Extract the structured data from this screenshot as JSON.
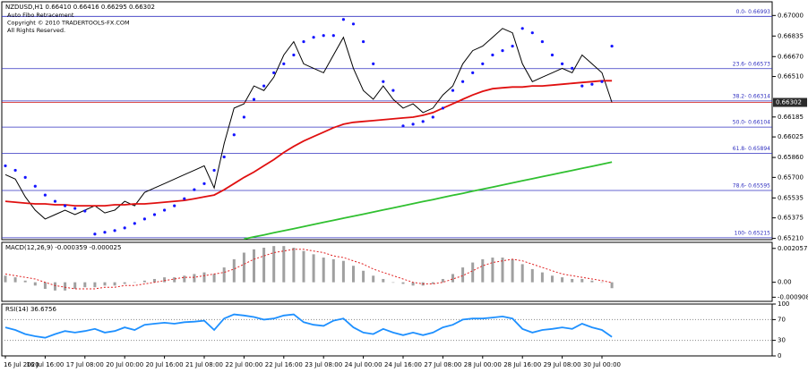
{
  "chart_data": [
    {
      "type": "price",
      "title": "NZDUSD,H1  0.66410 0.66416 0.66295 0.66302",
      "annotations": [
        "Auto Fibo Retracement",
        "Copyright © 2010 TRADERTOOLS-FX.COM",
        "All Rights Reserved."
      ],
      "categories": [
        "16 Jul 2020",
        null,
        null,
        null,
        "16 Jul 16:00",
        null,
        null,
        null,
        "17 Jul 08:00",
        null,
        null,
        null,
        "20 Jul 00:00",
        null,
        null,
        null,
        "20 Jul 16:00",
        null,
        null,
        null,
        "21 Jul 08:00",
        null,
        null,
        null,
        "22 Jul 00:00",
        null,
        null,
        null,
        "22 Jul 16:00",
        null,
        null,
        null,
        "23 Jul 08:00",
        null,
        null,
        null,
        "24 Jul 00:00",
        null,
        null,
        null,
        "24 Jul 16:00",
        null,
        null,
        null,
        "27 Jul 08:00",
        null,
        null,
        null,
        "28 Jul 00:00",
        null,
        null,
        null,
        "28 Jul 16:00",
        null,
        null,
        null,
        "29 Jul 08:00",
        null,
        null,
        null,
        "30 Jul 00:00",
        null
      ],
      "ylim": [
        0.652,
        0.6711
      ],
      "yticks": [
        {
          "value": 0.67,
          "label": "0.67000"
        },
        {
          "value": 0.66835,
          "label": "0.66835"
        },
        {
          "value": 0.6667,
          "label": "0.66670"
        },
        {
          "value": 0.6651,
          "label": "0.66510"
        },
        {
          "value": 0.66185,
          "label": "0.66185"
        },
        {
          "value": 0.66025,
          "label": "0.66025"
        },
        {
          "value": 0.6586,
          "label": "0.65860"
        },
        {
          "value": 0.657,
          "label": "0.65700"
        },
        {
          "value": 0.65535,
          "label": "0.65535"
        },
        {
          "value": 0.65375,
          "label": "0.65375"
        },
        {
          "value": 0.6521,
          "label": "0.65210"
        }
      ],
      "grid": false,
      "fibo_color": "#3030c0",
      "fibo_levels": [
        {
          "value": 0.66993,
          "label": "0.0- 0.66993"
        },
        {
          "value": 0.66573,
          "label": "23.6- 0.66573"
        },
        {
          "value": 0.66314,
          "label": "38.2- 0.66314"
        },
        {
          "value": 0.66104,
          "label": "50.0- 0.66104"
        },
        {
          "value": 0.65894,
          "label": "61.8- 0.65894"
        },
        {
          "value": 0.65595,
          "label": "78.6- 0.65595"
        },
        {
          "value": 0.65215,
          "label": "100- 0.65215"
        }
      ],
      "current_price": 0.66302,
      "current_price_color": "#d01010",
      "series": [
        {
          "style": "line",
          "color": "#000000",
          "values": [
            0.65722,
            0.65686,
            0.65544,
            0.65437,
            0.65366,
            0.65401,
            0.65437,
            0.65401,
            0.65437,
            0.65472,
            0.65415,
            0.65437,
            0.65508,
            0.65472,
            0.65579,
            0.65615,
            0.6565,
            0.65686,
            0.65722,
            0.65757,
            0.65793,
            0.65615,
            0.65971,
            0.66256,
            0.66291,
            0.66434,
            0.66398,
            0.66505,
            0.66683,
            0.6679,
            0.66612,
            0.66576,
            0.6654,
            0.66683,
            0.66825,
            0.66576,
            0.66398,
            0.66327,
            0.66434,
            0.66327,
            0.66256,
            0.66291,
            0.6622,
            0.66256,
            0.66362,
            0.66434,
            0.66612,
            0.66718,
            0.66754,
            0.66825,
            0.66896,
            0.66861,
            0.66612,
            0.66469,
            0.66505,
            0.6654,
            0.66576,
            0.6654,
            0.66683,
            0.66612,
            0.6654,
            0.66302
          ]
        },
        {
          "style": "line",
          "color": "#e01010",
          "values": [
            0.65508,
            0.65501,
            0.65494,
            0.65487,
            0.65487,
            0.6548,
            0.6548,
            0.65472,
            0.65472,
            0.65472,
            0.65472,
            0.6548,
            0.6548,
            0.65487,
            0.65487,
            0.65494,
            0.65501,
            0.65508,
            0.65515,
            0.65529,
            0.65544,
            0.65558,
            0.65601,
            0.6565,
            0.657,
            0.65743,
            0.65793,
            0.65843,
            0.659,
            0.65949,
            0.65992,
            0.66028,
            0.66063,
            0.66099,
            0.66127,
            0.66142,
            0.66149,
            0.66156,
            0.66163,
            0.6617,
            0.66177,
            0.66184,
            0.66199,
            0.6622,
            0.66256,
            0.66291,
            0.66327,
            0.66362,
            0.66391,
            0.66412,
            0.66419,
            0.66426,
            0.66426,
            0.66434,
            0.66434,
            0.66441,
            0.66448,
            0.66455,
            0.66462,
            0.66469,
            0.66476,
            0.66476
          ]
        },
        {
          "style": "line",
          "color": "#30c030",
          "values": [
            null,
            null,
            null,
            null,
            null,
            null,
            null,
            null,
            null,
            null,
            null,
            null,
            null,
            null,
            null,
            null,
            null,
            null,
            null,
            null,
            null,
            null,
            null,
            null,
            0.65205,
            0.65222,
            0.65238,
            0.65255,
            0.65272,
            0.65288,
            0.65305,
            0.65322,
            0.65339,
            0.65355,
            0.65372,
            0.65389,
            0.65405,
            0.65422,
            0.65439,
            0.65455,
            0.65472,
            0.65489,
            0.65506,
            0.65522,
            0.65539,
            0.65556,
            0.65572,
            0.65589,
            0.65606,
            0.65622,
            0.65639,
            0.65656,
            0.65673,
            0.65689,
            0.65706,
            0.65723,
            0.65739,
            0.65756,
            0.65773,
            0.65789,
            0.65806,
            0.65823
          ]
        },
        {
          "style": "dots",
          "color": "#1414ff",
          "values": [
            0.65793,
            0.65757,
            0.657,
            0.65629,
            0.65558,
            0.65508,
            0.65472,
            0.65451,
            0.6543,
            0.65245,
            0.65259,
            0.65273,
            0.65294,
            0.6533,
            0.65366,
            0.65401,
            0.65437,
            0.65472,
            0.65529,
            0.65601,
            0.6565,
            0.65757,
            0.65864,
            0.66042,
            0.66184,
            0.66327,
            0.66434,
            0.6654,
            0.66612,
            0.66683,
            0.6679,
            0.66825,
            0.66839,
            0.66839,
            0.66968,
            0.66932,
            0.6679,
            0.66612,
            0.66469,
            0.66398,
            0.66113,
            0.66127,
            0.66149,
            0.66184,
            0.66256,
            0.66398,
            0.66469,
            0.6654,
            0.66612,
            0.66683,
            0.66718,
            0.66754,
            0.66896,
            0.66861,
            0.6679,
            0.66683,
            0.66612,
            0.66576,
            0.66434,
            0.66448,
            0.66469,
            0.66754
          ]
        }
      ]
    },
    {
      "type": "macd",
      "title": "MACD(12,26,9) -0.000359 -0.000025",
      "ylim": [
        -0.00116,
        0.002426
      ],
      "yticks": [
        0.002057,
        {
          "value": 0,
          "label": "0.00"
        },
        -0.000908
      ],
      "series": [
        {
          "style": "histogram",
          "color": "#a0a0a0",
          "values": [
            0.0004,
            0.0003,
            0.0001,
            -0.0002,
            -0.0004,
            -0.0005,
            -0.0005,
            -0.0004,
            -0.0003,
            -0.0003,
            -0.0002,
            -0.0002,
            -0.0001,
            0,
            0.0001,
            0.0002,
            0.0003,
            0.0003,
            0.0004,
            0.0005,
            0.0006,
            0.0005,
            0.0009,
            0.0014,
            0.0018,
            0.002,
            0.0021,
            0.0022,
            0.0022,
            0.0021,
            0.0019,
            0.0017,
            0.0015,
            0.0014,
            0.0013,
            0.001,
            0.0007,
            0.0004,
            0.0002,
            0,
            -0.0001,
            -0.0002,
            -0.0002,
            -0.0001,
            0.0002,
            0.0005,
            0.0009,
            0.0012,
            0.0014,
            0.0015,
            0.0015,
            0.0014,
            0.0011,
            0.0008,
            0.0006,
            0.0004,
            0.0003,
            0.0002,
            0.0002,
            0.0001,
            0,
            -0.000359
          ]
        },
        {
          "style": "dotted",
          "color": "#e02020",
          "values": [
            0.0005,
            0.0004,
            0.0003,
            0.0002,
            0,
            -0.0002,
            -0.0003,
            -0.0004,
            -0.0004,
            -0.0004,
            -0.0003,
            -0.0003,
            -0.0002,
            -0.0002,
            -0.0001,
            0,
            0.0001,
            0.0002,
            0.0003,
            0.0003,
            0.0004,
            0.0005,
            0.0006,
            0.0008,
            0.0011,
            0.0014,
            0.0016,
            0.0018,
            0.0019,
            0.002,
            0.002,
            0.0019,
            0.0018,
            0.0016,
            0.0015,
            0.0013,
            0.0011,
            0.0008,
            0.0006,
            0.0004,
            0.0002,
            0,
            -0.0001,
            -0.0001,
            0,
            0.0002,
            0.0004,
            0.0007,
            0.001,
            0.0012,
            0.0013,
            0.0014,
            0.0013,
            0.0011,
            0.0009,
            0.0007,
            0.0005,
            0.0004,
            0.0003,
            0.0002,
            0.0001,
            -2.5e-05
          ]
        }
      ]
    },
    {
      "type": "rsi",
      "title": "RSI(14) 36.6756",
      "ylim": [
        0,
        100
      ],
      "yticks": [
        100,
        70,
        30,
        0
      ],
      "levels": [
        70,
        30
      ],
      "series": [
        {
          "style": "line",
          "color": "#1e90ff",
          "values": [
            55,
            50,
            42,
            38,
            35,
            42,
            48,
            45,
            48,
            52,
            45,
            48,
            55,
            50,
            60,
            62,
            64,
            62,
            65,
            66,
            68,
            50,
            72,
            80,
            78,
            75,
            70,
            72,
            78,
            80,
            65,
            60,
            58,
            68,
            72,
            55,
            45,
            42,
            52,
            45,
            40,
            45,
            40,
            45,
            55,
            60,
            70,
            72,
            72,
            74,
            76,
            72,
            52,
            45,
            50,
            52,
            55,
            52,
            62,
            55,
            50,
            36.6756
          ]
        }
      ]
    }
  ]
}
